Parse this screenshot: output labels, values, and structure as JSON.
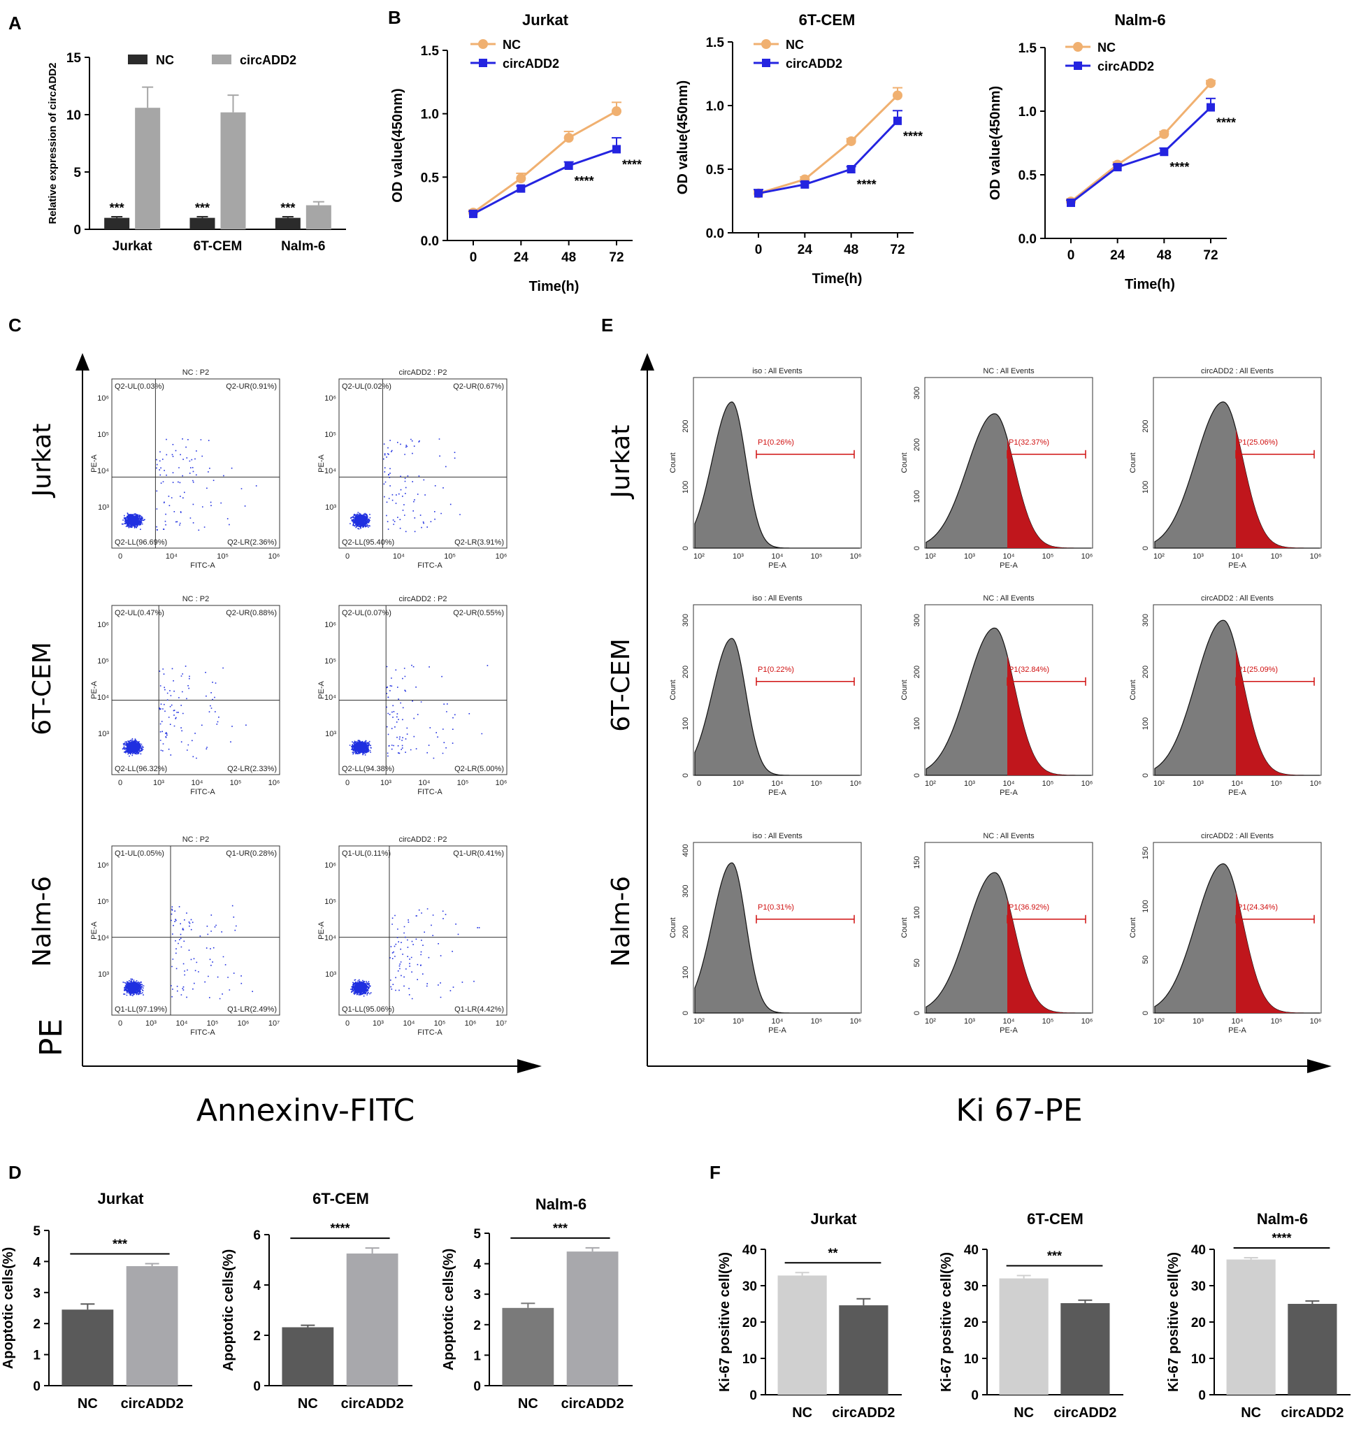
{
  "panel_labels": [
    "A",
    "B",
    "C",
    "D",
    "E",
    "F"
  ],
  "cell_lines": [
    "Jurkat",
    "6T-CEM",
    "Nalm-6"
  ],
  "chart_data": [
    {
      "id": "A",
      "type": "bar",
      "ylabel": "Relative expression of circADD2",
      "categories": [
        "Jurkat",
        "6T-CEM",
        "Nalm-6"
      ],
      "series": [
        {
          "name": "NC",
          "color": "#2b2b2b",
          "values": [
            1.0,
            1.0,
            1.0
          ],
          "errors": [
            0.1,
            0.1,
            0.1
          ]
        },
        {
          "name": "circADD2",
          "color": "#a6a6a6",
          "values": [
            10.6,
            10.2,
            2.1
          ],
          "errors": [
            1.8,
            1.5,
            0.3
          ]
        }
      ],
      "significance": [
        "***",
        "***",
        "***"
      ],
      "yticks": [
        "0",
        "5",
        "10",
        "15"
      ],
      "ylim": [
        0,
        15
      ]
    },
    {
      "id": "B1",
      "type": "line",
      "title": "Jurkat",
      "ylabel": "OD value(450nm)",
      "xlabel": "Time(h)",
      "x": [
        "0",
        "24",
        "48",
        "72"
      ],
      "ylim": [
        0,
        1.5
      ],
      "yticks": [
        "0.0",
        "0.5",
        "1.0",
        "1.5"
      ],
      "series": [
        {
          "name": "NC",
          "color": "#f0b070",
          "values": [
            0.22,
            0.49,
            0.81,
            1.02
          ],
          "errors": [
            0.02,
            0.04,
            0.05,
            0.07
          ]
        },
        {
          "name": "circADD2",
          "color": "#2424e0",
          "values": [
            0.21,
            0.41,
            0.59,
            0.72
          ],
          "errors": [
            0.02,
            0.02,
            0.03,
            0.09
          ]
        }
      ],
      "significance": [
        "",
        "",
        "****",
        "****"
      ]
    },
    {
      "id": "B2",
      "type": "line",
      "title": "6T-CEM",
      "ylabel": "OD value(450nm)",
      "xlabel": "Time(h)",
      "x": [
        "0",
        "24",
        "48",
        "72"
      ],
      "ylim": [
        0,
        1.5
      ],
      "yticks": [
        "0.0",
        "0.5",
        "1.0",
        "1.5"
      ],
      "series": [
        {
          "name": "NC",
          "color": "#f0b070",
          "values": [
            0.31,
            0.42,
            0.72,
            1.08
          ],
          "errors": [
            0.02,
            0.02,
            0.02,
            0.06
          ]
        },
        {
          "name": "circADD2",
          "color": "#2424e0",
          "values": [
            0.31,
            0.38,
            0.5,
            0.88
          ],
          "errors": [
            0.03,
            0.02,
            0.02,
            0.08
          ]
        }
      ],
      "significance": [
        "",
        "",
        "****",
        "****"
      ]
    },
    {
      "id": "B3",
      "type": "line",
      "title": "Nalm-6",
      "ylabel": "OD value(450nm)",
      "xlabel": "Time(h)",
      "x": [
        "0",
        "24",
        "48",
        "72"
      ],
      "ylim": [
        0,
        1.5
      ],
      "yticks": [
        "0.0",
        "0.5",
        "1.0",
        "1.5"
      ],
      "series": [
        {
          "name": "NC",
          "color": "#f0b070",
          "values": [
            0.29,
            0.58,
            0.82,
            1.22
          ],
          "errors": [
            0.02,
            0.02,
            0.02,
            0.02
          ]
        },
        {
          "name": "circADD2",
          "color": "#2424e0",
          "values": [
            0.28,
            0.56,
            0.68,
            1.03
          ],
          "errors": [
            0.02,
            0.02,
            0.03,
            0.07
          ]
        }
      ],
      "significance": [
        "",
        "",
        "****",
        "****"
      ]
    },
    {
      "id": "C",
      "type": "scatter",
      "xaxis_label": "Annexinv-FITC",
      "yaxis_label": "PE",
      "plot_xlabel": "FITC-A",
      "plot_ylabel": "PE-A",
      "panels": [
        {
          "title": "NC : P2",
          "ul": "Q2-UL(0.03%)",
          "ur": "Q2-UR(0.91%)",
          "ll": "Q2-LL(96.69%)",
          "lr": "Q2-LR(2.36%)",
          "xticks": [
            "0",
            "10⁴",
            "10⁵",
            "10⁶"
          ],
          "yticks": [
            "10³",
            "10⁴",
            "10⁵",
            "10⁶"
          ]
        },
        {
          "title": "circADD2 : P2",
          "ul": "Q2-UL(0.02%)",
          "ur": "Q2-UR(0.67%)",
          "ll": "Q2-LL(95.40%)",
          "lr": "Q2-LR(3.91%)",
          "xticks": [
            "0",
            "10⁴",
            "10⁵",
            "10⁶"
          ],
          "yticks": [
            "10³",
            "10⁴",
            "10⁵",
            "10⁶"
          ]
        },
        {
          "title": "NC : P2",
          "ul": "Q2-UL(0.47%)",
          "ur": "Q2-UR(0.88%)",
          "ll": "Q2-LL(96.32%)",
          "lr": "Q2-LR(2.33%)",
          "xticks": [
            "0",
            "10³",
            "10⁴",
            "10⁵",
            "10⁶"
          ],
          "yticks": [
            "10³",
            "10⁴",
            "10⁵",
            "10⁶"
          ]
        },
        {
          "title": "circADD2 : P2",
          "ul": "Q2-UL(0.07%)",
          "ur": "Q2-UR(0.55%)",
          "ll": "Q2-LL(94.38%)",
          "lr": "Q2-LR(5.00%)",
          "xticks": [
            "0",
            "10³",
            "10⁴",
            "10⁵",
            "10⁶"
          ],
          "yticks": [
            "10³",
            "10⁴",
            "10⁵",
            "10⁶"
          ]
        },
        {
          "title": "NC : P2",
          "ul": "Q1-UL(0.05%)",
          "ur": "Q1-UR(0.28%)",
          "ll": "Q1-LL(97.19%)",
          "lr": "Q1-LR(2.49%)",
          "xticks": [
            "0",
            "10³",
            "10⁴",
            "10⁵",
            "10⁶",
            "10⁷"
          ],
          "yticks": [
            "10³",
            "10⁴",
            "10⁵",
            "10⁶"
          ]
        },
        {
          "title": "circADD2 : P2",
          "ul": "Q1-UL(0.11%)",
          "ur": "Q1-UR(0.41%)",
          "ll": "Q1-LL(95.06%)",
          "lr": "Q1-LR(4.42%)",
          "xticks": [
            "0",
            "10³",
            "10⁴",
            "10⁵",
            "10⁶",
            "10⁷"
          ],
          "yticks": [
            "10³",
            "10⁴",
            "10⁵",
            "10⁶"
          ]
        }
      ]
    },
    {
      "id": "E",
      "type": "histogram",
      "xaxis_label": "Ki 67-PE",
      "plot_xlabel": "PE-A",
      "plot_ylabel": "Count",
      "xticks": [
        "10²",
        "10³",
        "10⁴",
        "10⁵",
        "10⁶"
      ],
      "xticks_alt": [
        "0",
        "10³",
        "10⁴",
        "10⁵",
        "10⁶"
      ],
      "panels": [
        {
          "title": "iso : All Events",
          "gate": "P1(0.26%)",
          "yticks": [
            "0",
            "100",
            "200"
          ],
          "peak": 240,
          "ymax": 280
        },
        {
          "title": "NC : All Events",
          "gate": "P1(32.37%)",
          "yticks": [
            "0",
            "100",
            "200",
            "300"
          ],
          "peak": 260,
          "ymax": 330
        },
        {
          "title": "circADD2 : All Events",
          "gate": "P1(25.06%)",
          "yticks": [
            "0",
            "100",
            "200"
          ],
          "peak": 240,
          "ymax": 280
        },
        {
          "title": "iso : All Events",
          "gate": "P1(0.22%)",
          "yticks": [
            "0",
            "100",
            "200",
            "300"
          ],
          "peak": 265,
          "ymax": 330
        },
        {
          "title": "NC : All Events",
          "gate": "P1(32.84%)",
          "yticks": [
            "0",
            "100",
            "200",
            "300"
          ],
          "peak": 285,
          "ymax": 330
        },
        {
          "title": "circADD2 : All Events",
          "gate": "P1(25.09%)",
          "yticks": [
            "0",
            "100",
            "200",
            "300"
          ],
          "peak": 300,
          "ymax": 330
        },
        {
          "title": "iso : All Events",
          "gate": "P1(0.31%)",
          "yticks": [
            "0",
            "100",
            "200",
            "300",
            "400"
          ],
          "peak": 370,
          "ymax": 420
        },
        {
          "title": "NC : All Events",
          "gate": "P1(36.92%)",
          "yticks": [
            "0",
            "50",
            "100",
            "150"
          ],
          "peak": 140,
          "ymax": 170
        },
        {
          "title": "circADD2 : All Events",
          "gate": "P1(24.34%)",
          "yticks": [
            "0",
            "50",
            "100",
            "150"
          ],
          "peak": 140,
          "ymax": 160
        }
      ]
    },
    {
      "id": "D",
      "type": "bar",
      "ylabel": "Apoptotic cells(%)",
      "panels": [
        {
          "title": "Jurkat",
          "categories": [
            "NC",
            "circADD2"
          ],
          "values": [
            2.45,
            3.85
          ],
          "errors": [
            0.18,
            0.08
          ],
          "colors": [
            "#5a5a5a",
            "#a8a8ac"
          ],
          "significance": "***",
          "ylim": [
            0,
            5
          ],
          "yticks": [
            "0",
            "1",
            "2",
            "3",
            "4",
            "5"
          ]
        },
        {
          "title": "6T-CEM",
          "categories": [
            "NC",
            "circADD2"
          ],
          "values": [
            2.32,
            5.25
          ],
          "errors": [
            0.08,
            0.22
          ],
          "colors": [
            "#5a5a5a",
            "#a8a8ac"
          ],
          "significance": "****",
          "ylim": [
            0,
            6
          ],
          "yticks": [
            "0",
            "2",
            "4",
            "6"
          ]
        },
        {
          "title": "Nalm-6",
          "categories": [
            "NC",
            "circADD2"
          ],
          "values": [
            2.55,
            4.4
          ],
          "errors": [
            0.15,
            0.12
          ],
          "colors": [
            "#7a7a7a",
            "#a8a8ac"
          ],
          "significance": "***",
          "ylim": [
            0,
            5
          ],
          "yticks": [
            "0",
            "1",
            "2",
            "3",
            "4",
            "5"
          ]
        }
      ]
    },
    {
      "id": "F",
      "type": "bar",
      "ylabel": "Ki-67 positive cell(%)",
      "panels": [
        {
          "title": "Jurkat",
          "categories": [
            "NC",
            "circADD2"
          ],
          "values": [
            32.8,
            24.6
          ],
          "errors": [
            0.8,
            1.8
          ],
          "colors": [
            "#d0d0d0",
            "#5a5a5a"
          ],
          "significance": "**",
          "ylim": [
            0,
            40
          ],
          "yticks": [
            "0",
            "10",
            "20",
            "30",
            "40"
          ]
        },
        {
          "title": "6T-CEM",
          "categories": [
            "NC",
            "circADD2"
          ],
          "values": [
            32.0,
            25.2
          ],
          "errors": [
            0.8,
            0.8
          ],
          "colors": [
            "#d0d0d0",
            "#5a5a5a"
          ],
          "significance": "***",
          "ylim": [
            0,
            40
          ],
          "yticks": [
            "0",
            "10",
            "20",
            "30",
            "40"
          ]
        },
        {
          "title": "Nalm-6",
          "categories": [
            "NC",
            "circADD2"
          ],
          "values": [
            37.2,
            25.0
          ],
          "errors": [
            0.5,
            0.8
          ],
          "colors": [
            "#d0d0d0",
            "#5a5a5a"
          ],
          "significance": "****",
          "ylim": [
            0,
            40
          ],
          "yticks": [
            "0",
            "10",
            "20",
            "30",
            "40"
          ]
        }
      ]
    }
  ]
}
